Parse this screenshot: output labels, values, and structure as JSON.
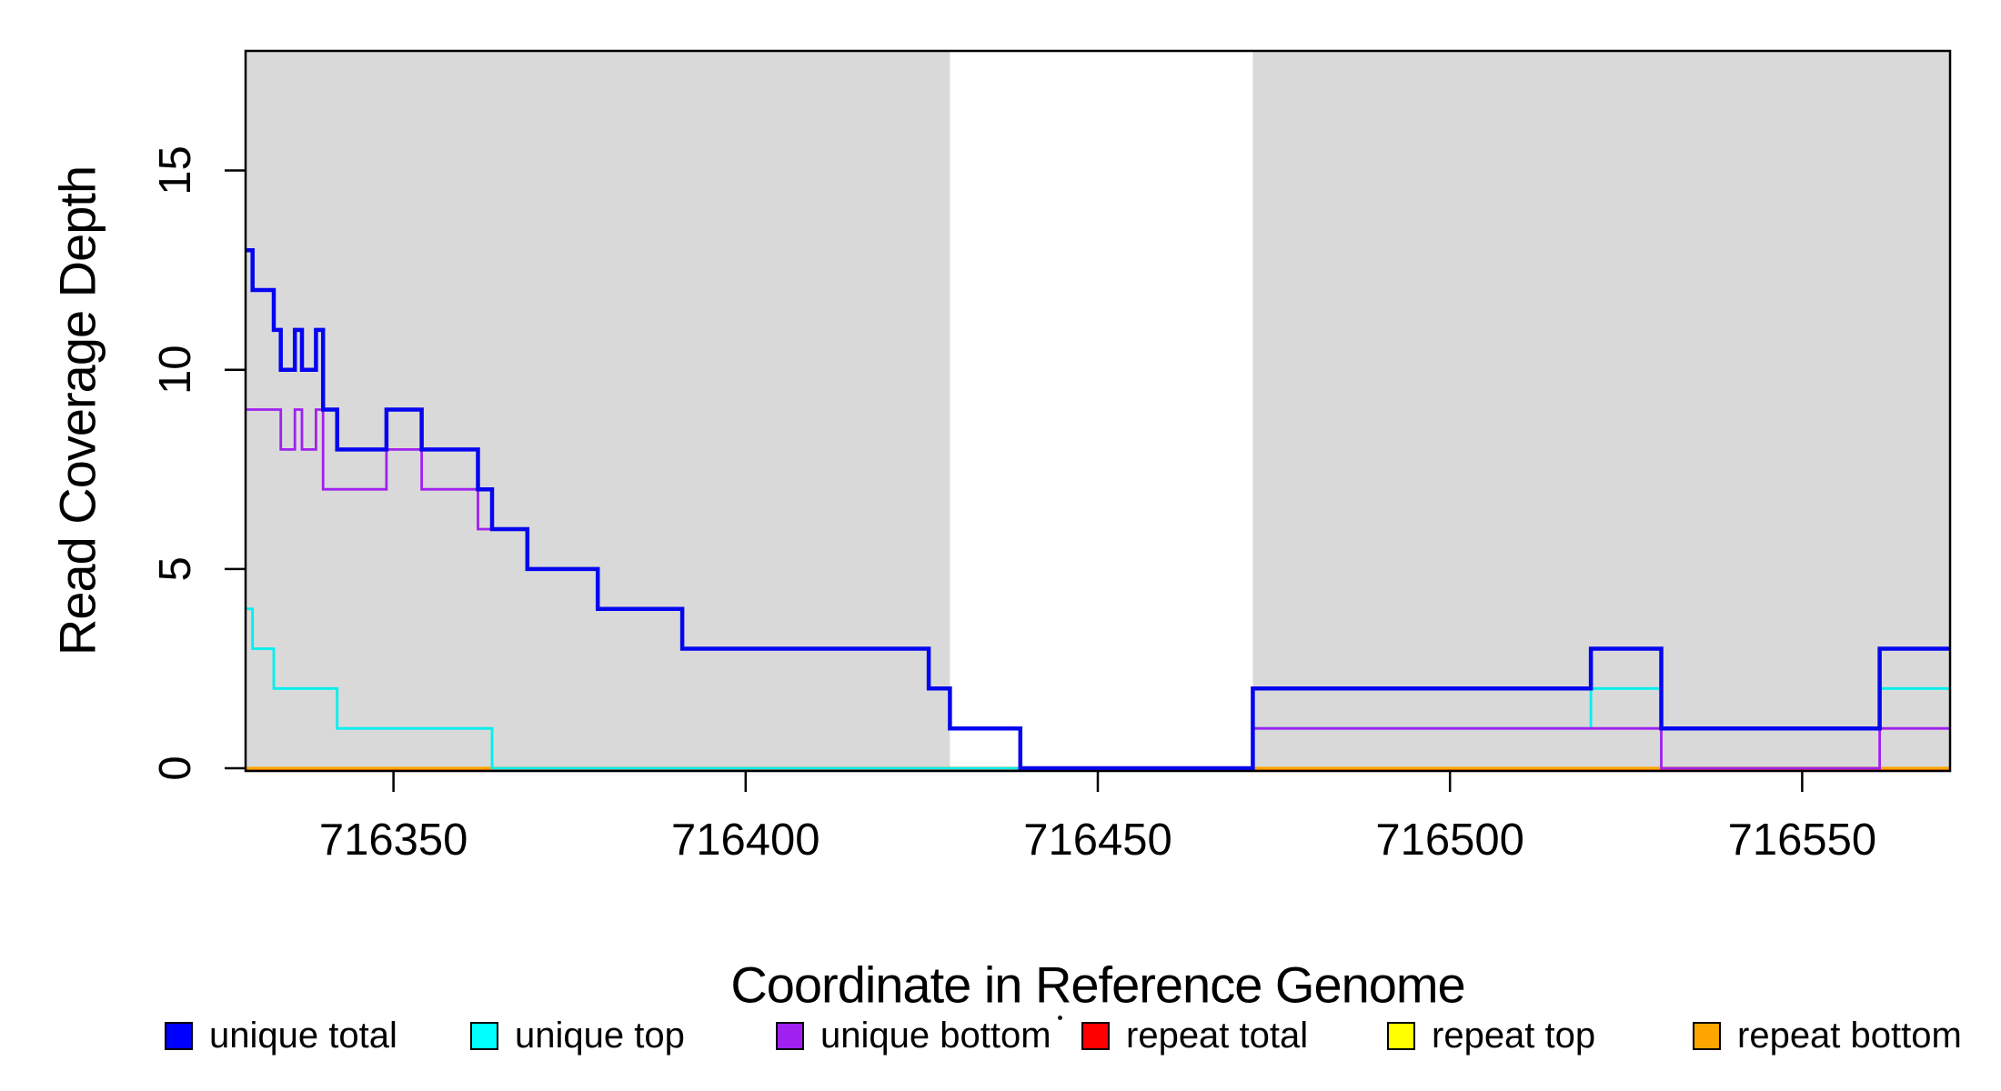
{
  "chart_data": {
    "type": "line",
    "subtype": "step-after-coverage-plot",
    "xlabel": "Coordinate in Reference Genome",
    "ylabel": "Read Coverage Depth",
    "xlim": [
      716329,
      716571
    ],
    "ylim": [
      0,
      18
    ],
    "x_ticks": [
      716350,
      716400,
      716450,
      716500,
      716550
    ],
    "y_ticks": [
      0,
      5,
      10,
      15
    ],
    "grid": "off",
    "background_regions": {
      "color": "#D9D9D9",
      "ranges": [
        [
          716329,
          716429
        ],
        [
          716472,
          716571
        ]
      ]
    },
    "series": [
      {
        "name": "repeat top",
        "color": "#FFFF00",
        "width": 3,
        "dy": 0,
        "steps": [
          [
            716329,
            0
          ]
        ]
      },
      {
        "name": "repeat total",
        "color": "#FF0000",
        "width": 2.5,
        "dy": 1.8,
        "steps": [
          [
            716329,
            0
          ]
        ]
      },
      {
        "name": "repeat bottom",
        "color": "#FFA500",
        "width": 3.2,
        "dy": 0,
        "steps": [
          [
            716329,
            0
          ]
        ]
      },
      {
        "name": "unique top",
        "color": "#00EFEF",
        "width": 2.8,
        "dy": 0,
        "steps": [
          [
            716329,
            4
          ],
          [
            716330,
            3
          ],
          [
            716333,
            2
          ],
          [
            716342,
            1
          ],
          [
            716364,
            0
          ],
          [
            716472,
            1
          ],
          [
            716520,
            2
          ],
          [
            716530,
            1
          ],
          [
            716561,
            2
          ]
        ]
      },
      {
        "name": "unique bottom",
        "color": "#A020F0",
        "width": 2.8,
        "dy": 0,
        "steps": [
          [
            716329,
            9
          ],
          [
            716334,
            8
          ],
          [
            716336,
            9
          ],
          [
            716337,
            8
          ],
          [
            716339,
            9
          ],
          [
            716340,
            7
          ],
          [
            716349,
            8
          ],
          [
            716354,
            7
          ],
          [
            716362,
            6
          ],
          [
            716369,
            5
          ],
          [
            716379,
            4
          ],
          [
            716391,
            3
          ],
          [
            716426,
            2
          ],
          [
            716429,
            1
          ],
          [
            716439,
            0
          ],
          [
            716472,
            1
          ],
          [
            716530,
            0
          ],
          [
            716561,
            1
          ]
        ]
      },
      {
        "name": "unique total",
        "color": "#0505F0",
        "width": 4.5,
        "dy": 0,
        "steps": [
          [
            716329,
            13
          ],
          [
            716330,
            12
          ],
          [
            716333,
            11
          ],
          [
            716334,
            10
          ],
          [
            716336,
            11
          ],
          [
            716337,
            10
          ],
          [
            716339,
            11
          ],
          [
            716340,
            9
          ],
          [
            716342,
            8
          ],
          [
            716349,
            9
          ],
          [
            716354,
            8
          ],
          [
            716362,
            7
          ],
          [
            716364,
            6
          ],
          [
            716369,
            5
          ],
          [
            716379,
            4
          ],
          [
            716391,
            3
          ],
          [
            716426,
            2
          ],
          [
            716429,
            1
          ],
          [
            716439,
            0
          ],
          [
            716472,
            2
          ],
          [
            716520,
            3
          ],
          [
            716530,
            1
          ],
          [
            716561,
            3
          ]
        ]
      }
    ],
    "legend": [
      {
        "label": "unique total",
        "color": "#0000FF"
      },
      {
        "label": "unique top",
        "color": "#00FFFF"
      },
      {
        "label": "unique bottom",
        "color": "#A020F0"
      },
      {
        "label": "repeat total",
        "color": "#FF0000"
      },
      {
        "label": "repeat top",
        "color": "#FFFF00"
      },
      {
        "label": "repeat bottom",
        "color": "#FFA500"
      }
    ],
    "legend_position": "bottom"
  }
}
